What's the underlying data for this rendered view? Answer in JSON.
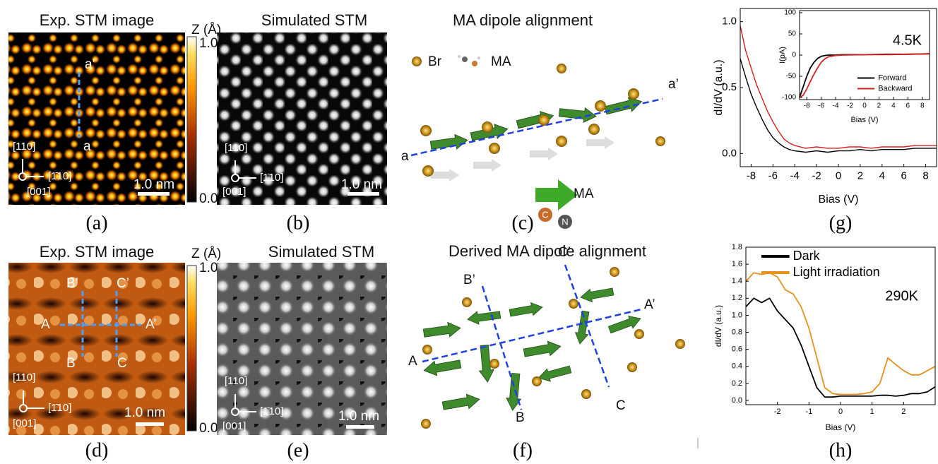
{
  "panels": {
    "a": {
      "title": "Exp. STM image",
      "colorbar": {
        "label": "Z (Å)",
        "max": "1.0",
        "min": "0.0"
      },
      "line_labels": [
        "a’",
        "a"
      ],
      "axes": [
        "[110]",
        "[1̄10]",
        "[001]"
      ],
      "scale": "1.0 nm",
      "caption": "(a)"
    },
    "b": {
      "title": "Simulated STM",
      "axes": [
        "[110]",
        "[1̄10]",
        "[001]"
      ],
      "scale": "1.0 nm",
      "caption": "(b)"
    },
    "c": {
      "title": "MA dipole alignment",
      "legend": [
        "Br",
        "MA"
      ],
      "line_labels": [
        "a",
        "a’"
      ],
      "arrow_label": "MA",
      "atoms": [
        "C",
        "N"
      ],
      "caption": "(c)"
    },
    "d": {
      "title": "Exp. STM image",
      "colorbar": {
        "label": "Z (Å)",
        "max": "1.0",
        "min": "0.0"
      },
      "line_labels": [
        "A",
        "A’",
        "B’",
        "B",
        "C’",
        "C"
      ],
      "axes": [
        "[110]",
        "[1̄10]",
        "[001]"
      ],
      "scale": "1.0 nm",
      "caption": "(d)"
    },
    "e": {
      "title": "Simulated STM",
      "axes": [
        "[110]",
        "[1̄10]",
        "[001]"
      ],
      "scale": "1.0 nm",
      "caption": "(e)"
    },
    "f": {
      "title": "Derived MA dipole alignment",
      "line_labels": [
        "A",
        "A’",
        "B’",
        "B",
        "C’",
        "C"
      ],
      "caption": "(f)"
    }
  },
  "chart_data": [
    {
      "type": "line",
      "caption": "(g)",
      "xlabel": "Bias (V)",
      "ylabel": "dI/dV (a.u.)",
      "x": [
        -9,
        -8.5,
        -8,
        -7.5,
        -7,
        -6.5,
        -6,
        -5.5,
        -5,
        -4.5,
        -4,
        -3,
        -2,
        -1,
        0,
        1,
        2,
        3,
        4,
        5,
        6,
        7,
        8,
        9
      ],
      "series": [
        {
          "color": "#000000",
          "values": [
            0.72,
            0.58,
            0.45,
            0.35,
            0.26,
            0.18,
            0.12,
            0.08,
            0.05,
            0.03,
            0.02,
            0.01,
            0.02,
            0.01,
            0.02,
            0.02,
            0.03,
            0.02,
            0.03,
            0.03,
            0.03,
            0.04,
            0.04,
            0.04
          ]
        },
        {
          "color": "#d62020",
          "values": [
            0.97,
            0.78,
            0.65,
            0.52,
            0.42,
            0.32,
            0.24,
            0.17,
            0.11,
            0.08,
            0.06,
            0.04,
            0.05,
            0.04,
            0.04,
            0.05,
            0.05,
            0.04,
            0.05,
            0.05,
            0.05,
            0.06,
            0.06,
            0.06
          ]
        }
      ],
      "xlim": [
        -9,
        9
      ],
      "ylim": [
        -0.1,
        1.1
      ],
      "xticks": [
        -8,
        -6,
        -4,
        -2,
        0,
        2,
        4,
        6,
        8
      ],
      "yticks": [
        {
          "value": 0,
          "label": "0.0"
        },
        0.5,
        {
          "value": 1,
          "label": "1.0"
        }
      ]
    },
    {
      "type": "line",
      "xlabel": "Bias (V)",
      "ylabel": "I(pA)",
      "annotation": "4.5K",
      "legend": "lower right",
      "x": [
        -9,
        -8.5,
        -8,
        -7.5,
        -7,
        -6.5,
        -6,
        -5.5,
        -5,
        -4,
        -3,
        0,
        3,
        6,
        9
      ],
      "series": [
        {
          "name": "Forward",
          "color": "#000000",
          "values": [
            -100,
            -75,
            -50,
            -30,
            -17,
            -8,
            -3,
            -1,
            0,
            0,
            1,
            1,
            2,
            2,
            3
          ]
        },
        {
          "name": "Backward",
          "color": "#d62020",
          "values": [
            -100,
            -95,
            -80,
            -62,
            -45,
            -30,
            -17,
            -9,
            -4,
            -1,
            0,
            1,
            1,
            2,
            3
          ]
        }
      ],
      "xlim": [
        -9,
        9
      ],
      "ylim": [
        -105,
        105
      ],
      "xticks": [
        -8,
        -6,
        -4,
        -2,
        0,
        2,
        4,
        6,
        8
      ],
      "yticks": [
        -100,
        -50,
        0,
        50,
        100
      ]
    },
    {
      "type": "line",
      "caption": "(h)",
      "xlabel": "Bias (V)",
      "ylabel": "dI/dV (a.u.)",
      "annotation": "290K",
      "legend": "upper left",
      "x": [
        -3,
        -2.75,
        -2.5,
        -2.25,
        -2,
        -1.75,
        -1.5,
        -1.25,
        -1,
        -0.75,
        -0.5,
        -0.25,
        0,
        0.25,
        0.5,
        0.75,
        1,
        1.25,
        1.5,
        1.75,
        2,
        2.25,
        2.5,
        2.75,
        3
      ],
      "series": [
        {
          "name": "Dark",
          "color": "#000000",
          "values": [
            1.1,
            1.2,
            1.15,
            1.2,
            1.05,
            0.95,
            0.85,
            0.65,
            0.4,
            0.15,
            0.04,
            0.04,
            0.05,
            0.05,
            0.05,
            0.05,
            0.05,
            0.06,
            0.06,
            0.05,
            0.06,
            0.08,
            0.08,
            0.1,
            0.16
          ]
        },
        {
          "name": "Light irradiation",
          "color": "#e8901c",
          "values": [
            1.4,
            1.5,
            1.48,
            1.5,
            1.45,
            1.3,
            1.25,
            1.1,
            0.85,
            0.5,
            0.15,
            0.08,
            0.07,
            0.07,
            0.07,
            0.08,
            0.1,
            0.2,
            0.5,
            0.42,
            0.35,
            0.3,
            0.3,
            0.35,
            0.4
          ]
        }
      ],
      "xlim": [
        -3,
        3
      ],
      "ylim": [
        -0.05,
        1.8
      ],
      "xticks": [
        -2,
        -1,
        0,
        1,
        2
      ],
      "yticks": [
        {
          "value": 0,
          "label": "0.0"
        },
        0.2,
        0.4,
        0.6,
        0.8,
        {
          "value": 1,
          "label": "1.0"
        },
        {
          "value": 1.2,
          "label": "1.2"
        },
        {
          "value": 1.4,
          "label": "1.4"
        },
        {
          "value": 1.6,
          "label": "1.6"
        },
        {
          "value": 1.8,
          "label": "1.8"
        }
      ]
    }
  ]
}
